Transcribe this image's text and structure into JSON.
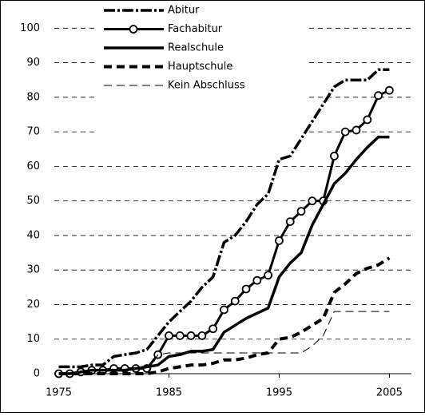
{
  "chart_data": {
    "type": "line",
    "x": [
      1975,
      1976,
      1977,
      1978,
      1979,
      1980,
      1981,
      1982,
      1983,
      1984,
      1985,
      1986,
      1987,
      1988,
      1989,
      1990,
      1991,
      1992,
      1993,
      1994,
      1995,
      1996,
      1997,
      1998,
      1999,
      2000,
      2001,
      2002,
      2003,
      2004,
      2005
    ],
    "series": [
      {
        "name": "Abitur",
        "color": "#000000",
        "values": [
          2,
          2,
          2,
          2.5,
          2.5,
          5,
          5.5,
          6,
          7,
          11,
          15,
          18,
          21,
          25,
          28,
          38,
          40,
          44,
          49,
          52,
          62,
          63,
          68,
          73,
          78,
          83,
          85,
          85,
          85,
          88,
          88
        ]
      },
      {
        "name": "Fachabitur",
        "color": "#000000",
        "values": [
          0,
          0,
          0.5,
          1,
          1,
          1.5,
          1.5,
          1.5,
          1.5,
          5.5,
          11,
          11,
          11,
          11,
          13,
          18.5,
          21,
          24.5,
          27,
          28.5,
          38.5,
          44,
          47,
          50,
          50,
          63,
          70,
          70.5,
          73.5,
          80.5,
          82
        ]
      },
      {
        "name": "Realschule",
        "color": "#000000",
        "values": [
          0,
          0,
          0.5,
          1,
          1,
          1,
          1,
          1.5,
          2,
          2.5,
          5,
          5.5,
          6.5,
          6.5,
          7,
          12,
          14,
          16,
          17.5,
          19,
          28,
          32,
          35,
          43,
          49,
          55,
          58,
          62,
          65.5,
          68.5,
          68.5
        ]
      },
      {
        "name": "Hauptschule",
        "color": "#000000",
        "values": [
          0,
          0,
          0,
          0,
          0,
          0,
          0,
          0,
          0,
          0.5,
          1.5,
          2,
          2.5,
          2.5,
          3,
          4,
          4,
          4.5,
          5.5,
          6,
          10,
          10.5,
          12,
          14,
          16,
          23.5,
          26,
          29,
          30.5,
          31.5,
          33.5
        ]
      },
      {
        "name": "Kein Abschluss",
        "color": "#000000",
        "values": [
          0,
          0,
          0,
          0,
          0,
          0,
          0,
          0,
          0,
          5.5,
          6,
          6,
          6,
          6,
          6,
          6,
          6,
          6,
          6,
          6,
          6,
          6,
          6,
          8,
          11,
          18,
          18,
          18,
          18,
          18,
          18
        ]
      }
    ],
    "xlim": [
      1974.6,
      2007
    ],
    "xticks": [
      1975,
      1985,
      1995,
      2005
    ],
    "ylim": [
      0,
      107
    ],
    "yticks": [
      0,
      10,
      20,
      30,
      40,
      50,
      60,
      70,
      80,
      90,
      100
    ],
    "grid": true,
    "legend": "top-left"
  }
}
